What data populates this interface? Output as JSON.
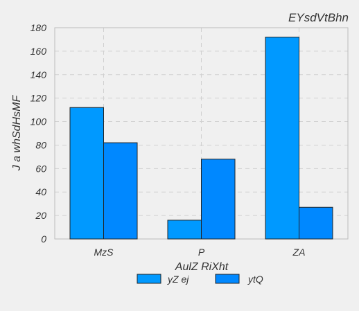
{
  "chart_data": {
    "type": "bar",
    "title": "EYsdVtBhn",
    "xlabel": "AulZ  RiXht",
    "ylabel": "J a whSdHsMF",
    "categories": [
      "MzS",
      "P",
      "ZA"
    ],
    "series": [
      {
        "name": "yZ ej",
        "values": [
          112,
          16,
          172
        ],
        "color": "#0099ff"
      },
      {
        "name": "ytQ",
        "values": [
          82,
          68,
          27
        ],
        "color": "#0088ff"
      }
    ],
    "ylim": [
      0,
      180
    ],
    "yticks": [
      0,
      20,
      40,
      60,
      80,
      100,
      120,
      140,
      160,
      180
    ],
    "grid": true,
    "legend_position": "bottom-center",
    "colors": {
      "background": "#f0f0f0",
      "grid": "#d0d0d0",
      "axis": "#bcbcbc",
      "bar_edge": "#222222"
    }
  }
}
